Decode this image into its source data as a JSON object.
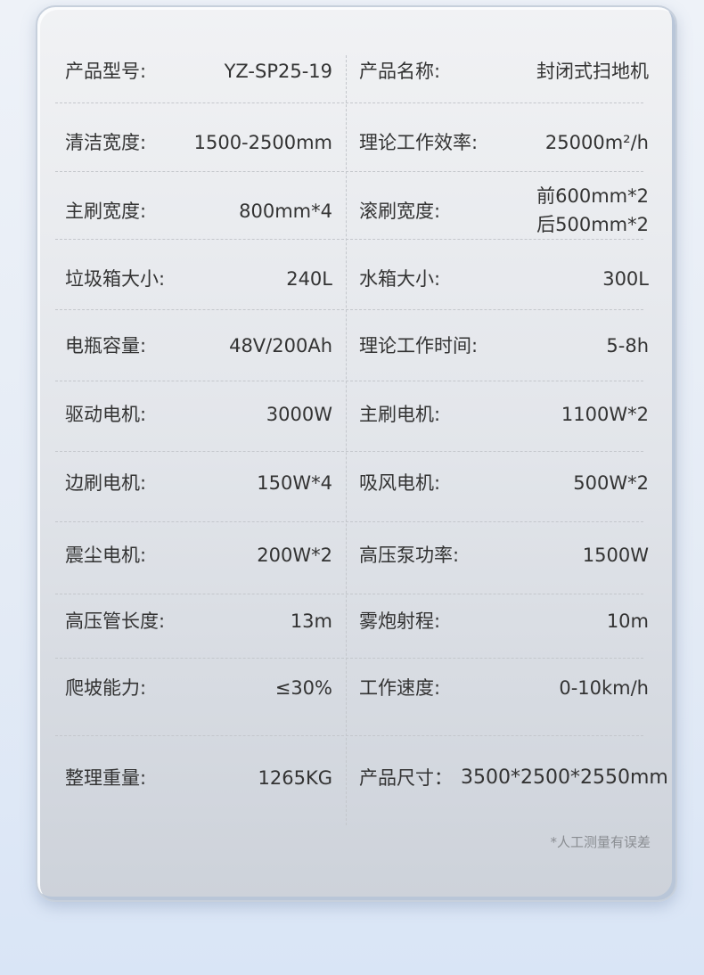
{
  "rows": [
    {
      "l_label": "产品型号:",
      "l_value": "YZ-SP25-19",
      "r_label": "产品名称:",
      "r_value": "封闭式扫地机"
    },
    {
      "l_label": "清洁宽度:",
      "l_value": "1500-2500mm",
      "r_label": "理论工作效率:",
      "r_value": "25000m²/h"
    },
    {
      "l_label": "主刷宽度:",
      "l_value": "800mm*4",
      "r_label": "滚刷宽度:",
      "r_value": "前600mm*2",
      "r_value2": "后500mm*2"
    },
    {
      "l_label": "垃圾箱大小:",
      "l_value": "240L",
      "r_label": "水箱大小:",
      "r_value": "300L"
    },
    {
      "l_label": "电瓶容量:",
      "l_value": "48V/200Ah",
      "r_label": "理论工作时间:",
      "r_value": "5-8h"
    },
    {
      "l_label": "驱动电机:",
      "l_value": "3000W",
      "r_label": "主刷电机:",
      "r_value": "1100W*2"
    },
    {
      "l_label": "边刷电机:",
      "l_value": "150W*4",
      "r_label": "吸风电机:",
      "r_value": "500W*2"
    },
    {
      "l_label": "震尘电机:",
      "l_value": "200W*2",
      "r_label": "高压泵功率:",
      "r_value": "1500W"
    },
    {
      "l_label": "高压管长度:",
      "l_value": "13m",
      "r_label": "雾炮射程:",
      "r_value": "10m"
    },
    {
      "l_label": "爬坡能力:",
      "l_value": "≤30%",
      "r_label": "工作速度:",
      "r_value": "0-10km/h"
    },
    {
      "l_label": "整理重量:",
      "l_value": "1265KG",
      "r_label": "产品尺寸：",
      "r_value": "3500*2500*2550mm"
    }
  ],
  "note": "*人工测量有误差"
}
